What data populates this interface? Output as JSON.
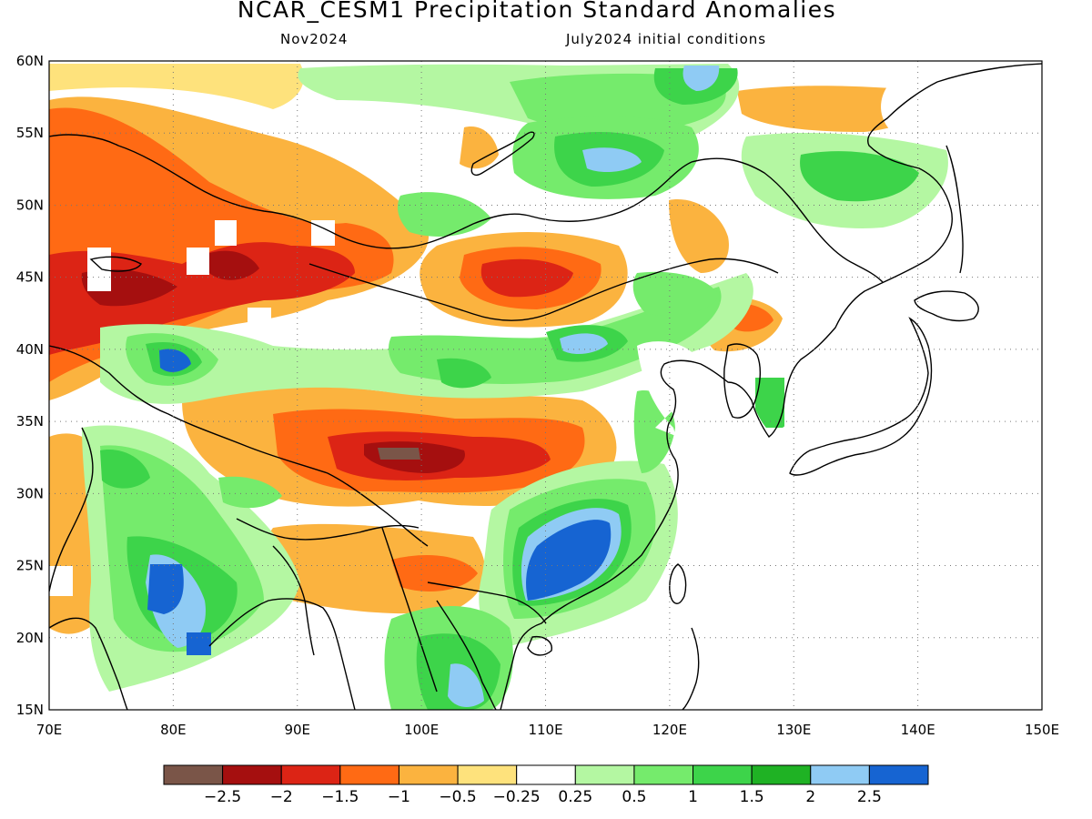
{
  "header": {
    "title": "NCAR_CESM1 Precipitation Standard Anomalies",
    "subtitle_left": "Nov2024",
    "subtitle_right": "July2024 initial conditions"
  },
  "map": {
    "lon_labels": [
      "70E",
      "80E",
      "90E",
      "100E",
      "110E",
      "120E",
      "130E",
      "140E",
      "150E"
    ],
    "lat_labels": [
      "60N",
      "55N",
      "50N",
      "45N",
      "40N",
      "35N",
      "30N",
      "25N",
      "20N",
      "15N"
    ],
    "lon_range": [
      70,
      150
    ],
    "lat_range": [
      15,
      60
    ],
    "gridlines": true,
    "colors": {
      "le_-2.5": "#7a5548",
      "-2.5_-2": "#a50f0f",
      "-2_-1.5": "#dc2415",
      "-1.5_-1": "#ff6a14",
      "-1_-0.5": "#fbb33f",
      "-0.5_-0.25": "#fee27c",
      "-0.25_0.25": "#ffffff",
      "0.25_0.5": "#b4f7a2",
      "0.5_1": "#75eb6c",
      "1_1.5": "#3dd44a",
      "1.5_2": "#1fb224",
      "2_2.5": "#8fcbf4",
      "ge_2.5": "#1664d2"
    }
  },
  "colorbar": {
    "labels": [
      "-2.5",
      "-2",
      "-1.5",
      "-1",
      "-0.5",
      "-0.25",
      "0.25",
      "0.5",
      "1",
      "1.5",
      "2",
      "2.5"
    ],
    "swatches": [
      "#7a5548",
      "#a50f0f",
      "#dc2415",
      "#ff6a14",
      "#fbb33f",
      "#fee27c",
      "#ffffff",
      "#b4f7a2",
      "#75eb6c",
      "#3dd44a",
      "#1fb224",
      "#8fcbf4",
      "#1664d2"
    ]
  }
}
